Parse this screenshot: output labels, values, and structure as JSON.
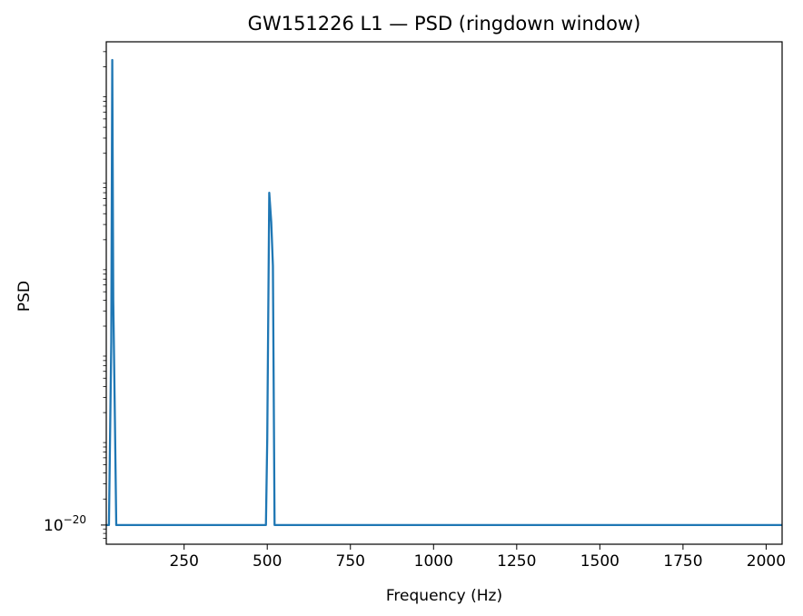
{
  "chart_data": {
    "type": "line",
    "title": "GW151226 L1 — PSD (ringdown window)",
    "xlabel": "Frequency (Hz)",
    "ylabel": "PSD",
    "xscale": "linear",
    "yscale": "log",
    "xlim": [
      16,
      2048
    ],
    "grid": false,
    "legend": "none",
    "x_ticks": [
      250,
      500,
      750,
      1000,
      1250,
      1500,
      1750,
      2000
    ],
    "x_tick_labels": [
      "250",
      "500",
      "750",
      "1000",
      "1250",
      "1500",
      "1750",
      "2000"
    ],
    "y_tick_label_base": "10",
    "y_tick_label_exponent": "−20",
    "series": [
      {
        "color": "#1f77b4",
        "points": [
          [
            16,
            1e-20
          ],
          [
            24,
            1e-20
          ],
          [
            31,
            1.3e-18
          ],
          [
            34,
            2.4e-15
          ],
          [
            37,
            4e-18
          ],
          [
            42,
            1.6e-19
          ],
          [
            46,
            1e-20
          ],
          [
            490,
            1e-20
          ],
          [
            496,
            1e-20
          ],
          [
            500,
            1e-19
          ],
          [
            506,
            7e-17
          ],
          [
            512,
            3.2e-17
          ],
          [
            517,
            1e-17
          ],
          [
            522,
            1e-20
          ],
          [
            528,
            1e-20
          ],
          [
            2048,
            1e-20
          ]
        ]
      }
    ]
  }
}
